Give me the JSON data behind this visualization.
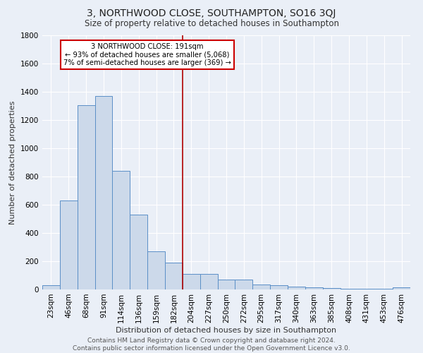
{
  "title": "3, NORTHWOOD CLOSE, SOUTHAMPTON, SO16 3QJ",
  "subtitle": "Size of property relative to detached houses in Southampton",
  "xlabel": "Distribution of detached houses by size in Southampton",
  "ylabel": "Number of detached properties",
  "bin_labels": [
    "23sqm",
    "46sqm",
    "68sqm",
    "91sqm",
    "114sqm",
    "136sqm",
    "159sqm",
    "182sqm",
    "204sqm",
    "227sqm",
    "250sqm",
    "272sqm",
    "295sqm",
    "317sqm",
    "340sqm",
    "363sqm",
    "385sqm",
    "408sqm",
    "431sqm",
    "453sqm",
    "476sqm"
  ],
  "bar_values": [
    30,
    630,
    1305,
    1370,
    840,
    530,
    270,
    190,
    110,
    110,
    70,
    70,
    35,
    30,
    20,
    15,
    10,
    5,
    5,
    5,
    15
  ],
  "bar_color": "#ccd9ea",
  "bar_edge_color": "#5b8fc7",
  "background_color": "#eaeff7",
  "grid_color": "#ffffff",
  "vline_x": 8.0,
  "vline_color": "#b00000",
  "annotation_text": "3 NORTHWOOD CLOSE: 191sqm\n← 93% of detached houses are smaller (5,068)\n7% of semi-detached houses are larger (369) →",
  "annotation_box_color": "#ffffff",
  "annotation_border_color": "#cc0000",
  "ylim": [
    0,
    1800
  ],
  "yticks": [
    0,
    200,
    400,
    600,
    800,
    1000,
    1200,
    1400,
    1600,
    1800
  ],
  "footer": "Contains HM Land Registry data © Crown copyright and database right 2024.\nContains public sector information licensed under the Open Government Licence v3.0.",
  "title_fontsize": 10,
  "subtitle_fontsize": 8.5,
  "xlabel_fontsize": 8,
  "ylabel_fontsize": 8,
  "tick_fontsize": 7.5,
  "footer_fontsize": 6.5
}
